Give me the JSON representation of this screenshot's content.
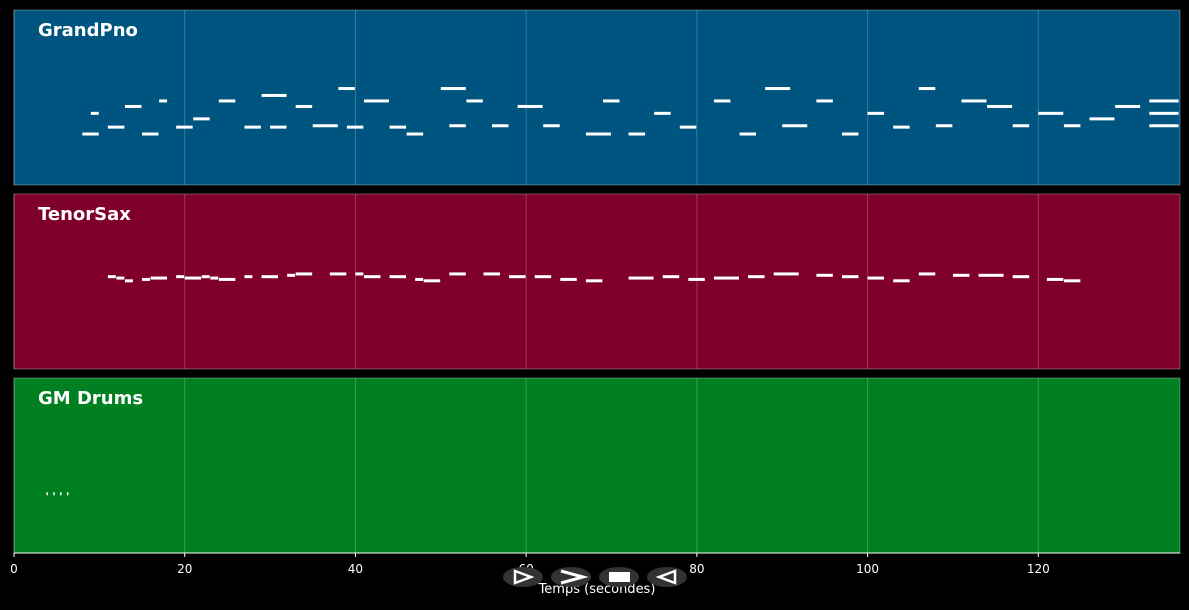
{
  "chart_data": {
    "type": "pianoroll",
    "xlabel": "Temps (secondes)",
    "xlim": [
      0,
      136.6
    ],
    "xticks": [
      0,
      20,
      40,
      60,
      80,
      100,
      120
    ],
    "ylim": [
      0,
      127
    ],
    "grid": true,
    "note_color": "#ffffff",
    "series": [
      {
        "name": "GrandPno",
        "color": "#005580",
        "x": [
          8,
          9,
          11,
          13,
          15,
          17,
          19,
          21,
          24,
          27,
          29,
          30,
          33,
          35,
          38,
          39,
          41,
          44,
          46,
          50,
          51,
          53,
          56,
          59,
          62,
          67,
          69,
          72,
          75,
          78,
          82,
          85,
          88,
          90,
          94,
          97,
          100,
          103,
          106,
          108,
          111,
          114,
          117,
          120,
          123,
          126,
          129,
          133,
          133,
          133
        ],
        "x2": [
          10,
          10,
          13,
          15,
          17,
          18,
          21,
          23,
          26,
          29,
          32,
          32,
          35,
          38,
          40,
          41,
          44,
          46,
          48,
          53,
          53,
          55,
          58,
          62,
          64,
          70,
          71,
          74,
          77,
          80,
          84,
          87,
          91,
          93,
          96,
          99,
          102,
          105,
          108,
          110,
          114,
          117,
          119,
          123,
          125,
          129,
          132,
          136.5,
          136.5,
          136.5
        ],
        "pitch": [
          37,
          52,
          42,
          57,
          37,
          61,
          42,
          48,
          61,
          42,
          65,
          42,
          57,
          43,
          70,
          42,
          61,
          42,
          37,
          70,
          43,
          61,
          43,
          57,
          43,
          37,
          61,
          37,
          52,
          42,
          61,
          37,
          70,
          43,
          61,
          37,
          52,
          42,
          70,
          43,
          61,
          57,
          43,
          52,
          43,
          48,
          57,
          61,
          52,
          43
        ]
      },
      {
        "name": "TenorSax",
        "color": "#7f002d",
        "x": [
          11,
          12,
          13,
          15,
          16,
          19,
          20,
          22,
          23,
          24,
          27,
          29,
          32,
          33,
          37,
          40,
          41,
          44,
          47,
          48,
          51,
          55,
          58,
          61,
          64,
          67,
          72,
          76,
          79,
          82,
          86,
          89,
          94,
          97,
          100,
          103,
          106,
          110,
          113,
          117,
          121,
          123
        ],
        "x2": [
          12,
          13,
          14,
          16,
          18,
          20,
          22,
          23,
          24,
          26,
          28,
          31,
          33,
          35,
          39,
          41,
          43,
          46,
          48,
          50,
          53,
          57,
          60,
          63,
          66,
          69,
          75,
          78,
          81,
          85,
          88,
          92,
          96,
          99,
          102,
          105,
          108,
          112,
          116,
          119,
          123,
          125
        ],
        "pitch": [
          67,
          66,
          64,
          65,
          66,
          67,
          66,
          67,
          66,
          65,
          67,
          67,
          68,
          69,
          69,
          69,
          67,
          67,
          65,
          64,
          69,
          69,
          67,
          67,
          65,
          64,
          66,
          67,
          65,
          66,
          67,
          69,
          68,
          67,
          66,
          64,
          69,
          68,
          68,
          67,
          65,
          64
        ]
      },
      {
        "name": "GM Drums",
        "color": "#008020",
        "x": [
          3.8,
          4.6,
          5.4,
          6.2
        ],
        "x2": [
          4.0,
          4.8,
          5.6,
          6.4
        ],
        "pitch": [
          43,
          43,
          43,
          43
        ]
      }
    ]
  }
}
